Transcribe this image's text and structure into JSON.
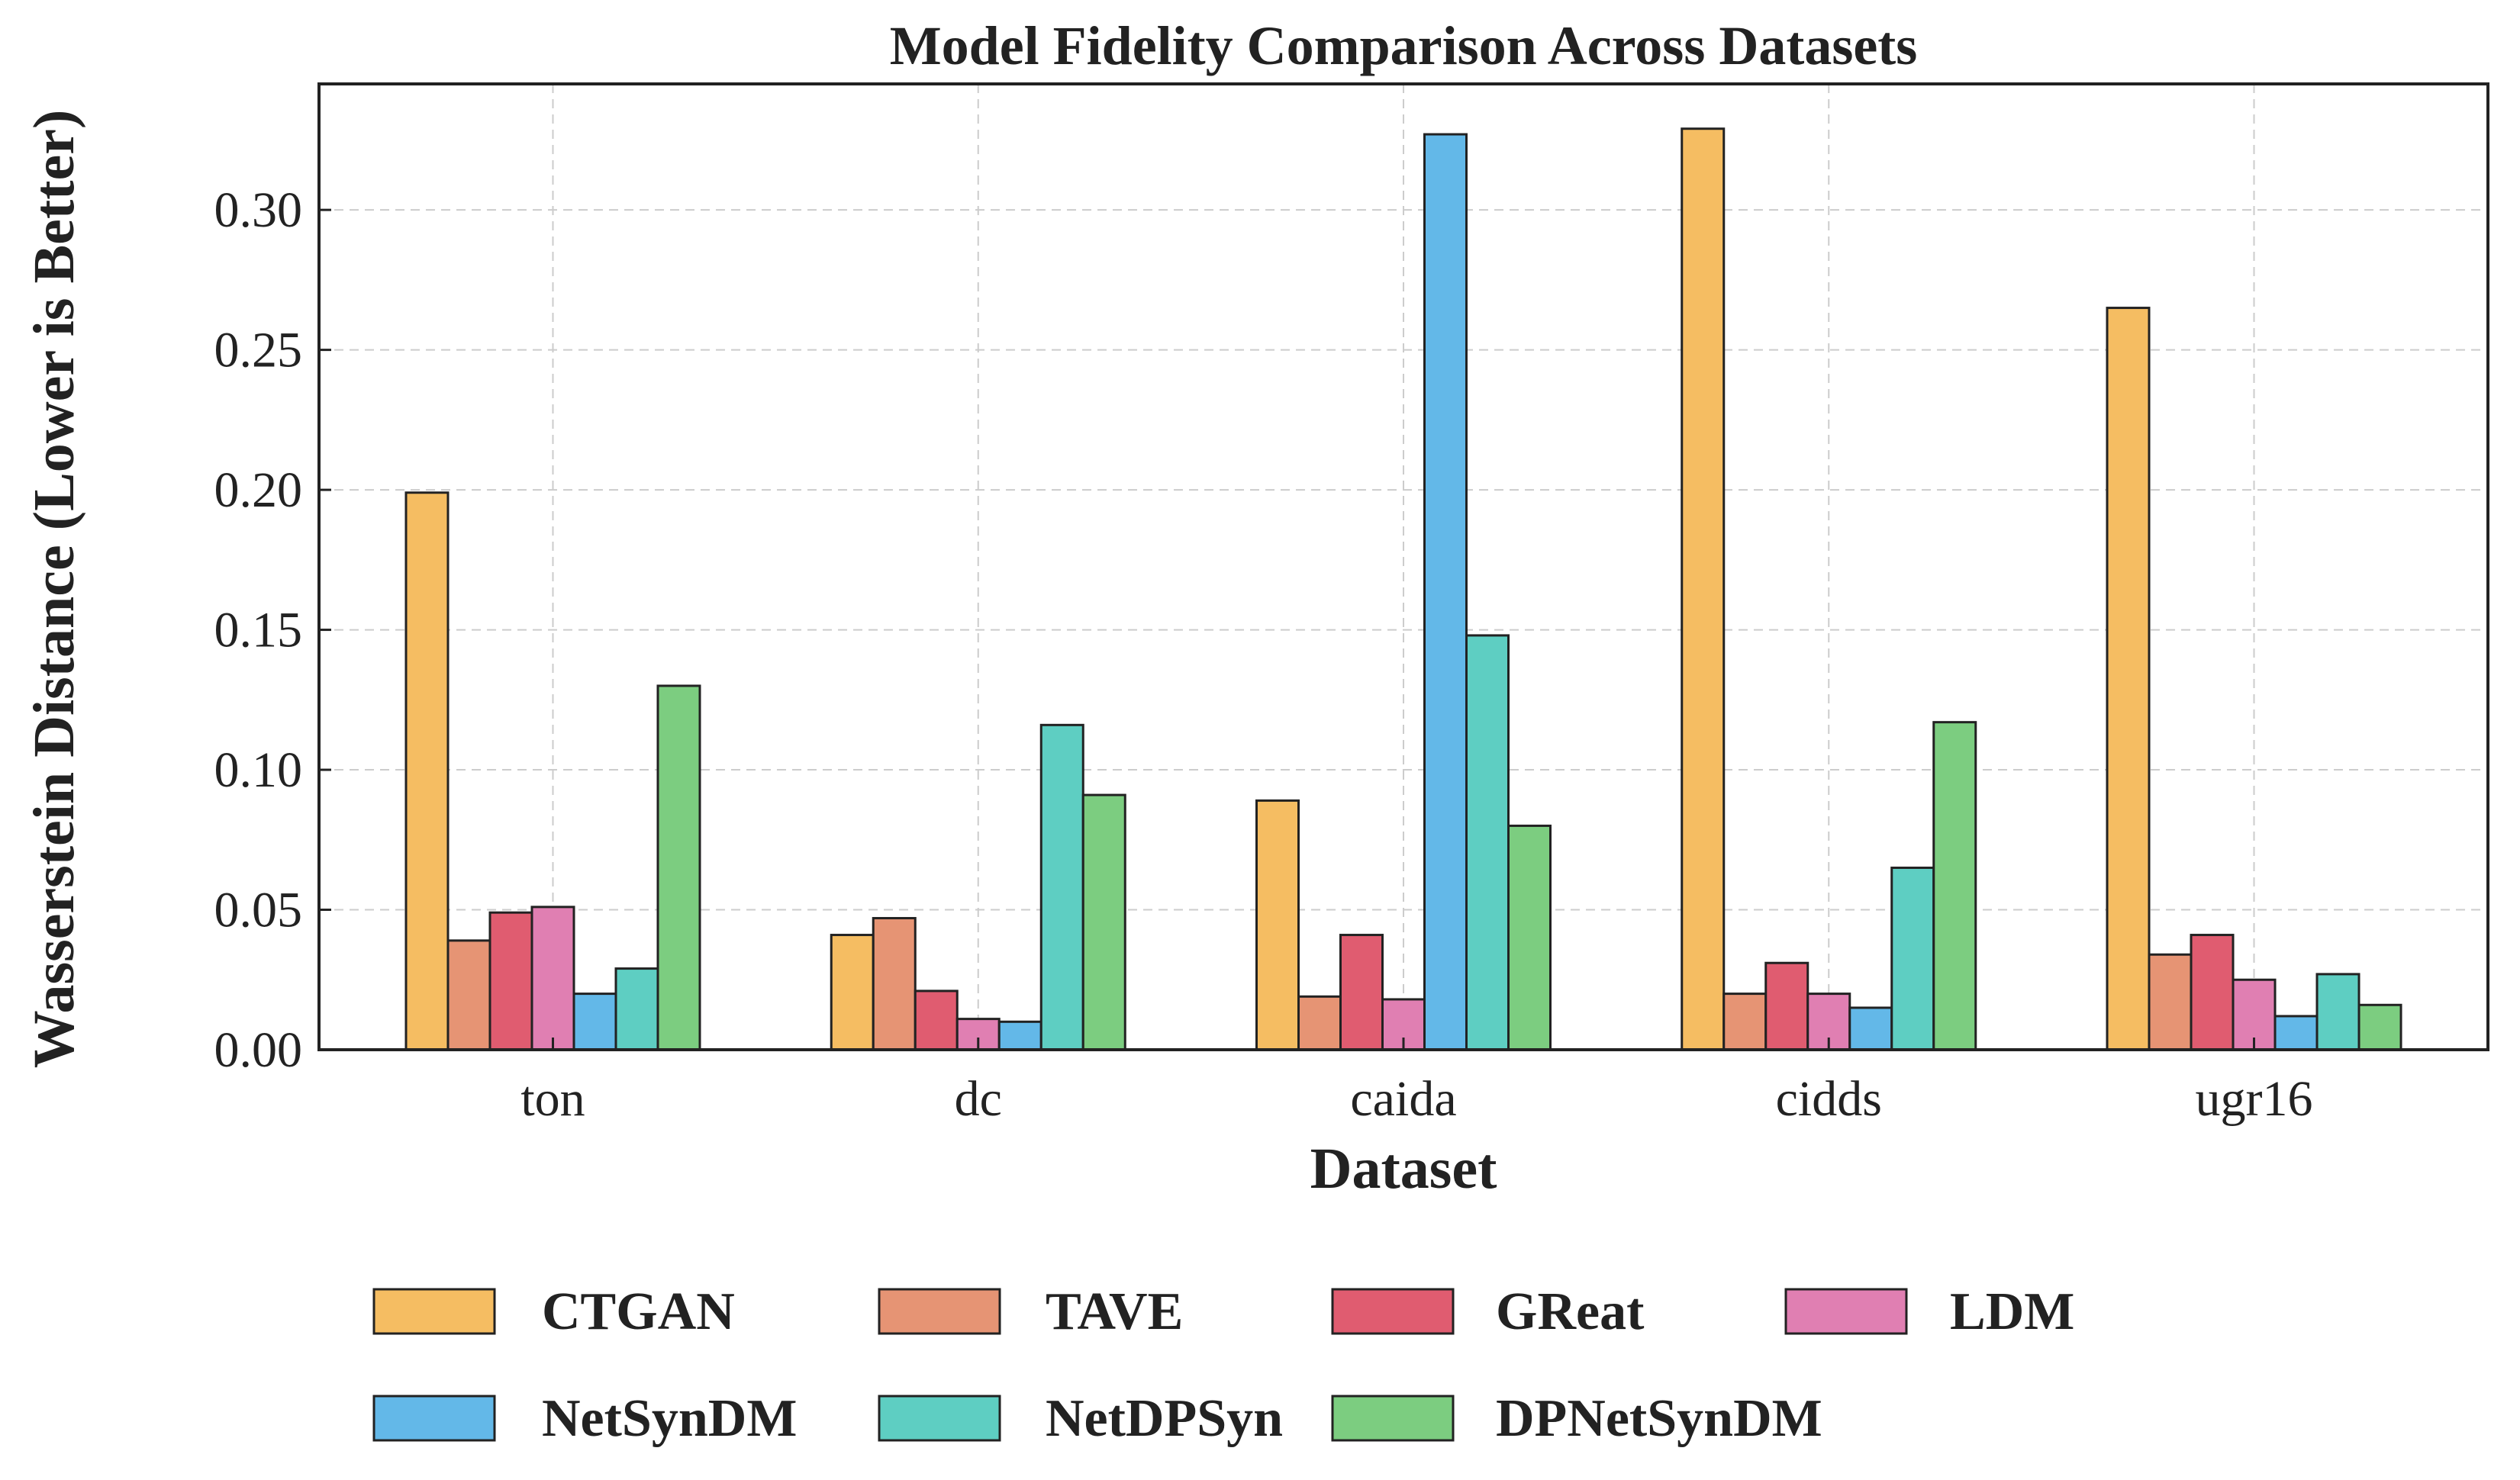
{
  "chart_data": {
    "type": "bar",
    "title": "Model Fidelity Comparison Across Datasets",
    "xlabel": "Dataset",
    "ylabel": "Wasserstein Distance (Lower is Better)",
    "categories": [
      "ton",
      "dc",
      "caida",
      "cidds",
      "ugr16"
    ],
    "ylim": [
      0,
      0.345
    ],
    "yticks": [
      0.0,
      0.05,
      0.1,
      0.15,
      0.2,
      0.25,
      0.3
    ],
    "ytick_labels": [
      "0.00",
      "0.05",
      "0.10",
      "0.15",
      "0.20",
      "0.25",
      "0.30"
    ],
    "grid": true,
    "legend_position": "bottom",
    "series": [
      {
        "name": "CTGAN",
        "color": "#F5BD62",
        "values": [
          0.199,
          0.041,
          0.089,
          0.329,
          0.265
        ]
      },
      {
        "name": "TAVE",
        "color": "#E69474",
        "values": [
          0.039,
          0.047,
          0.019,
          0.02,
          0.034
        ]
      },
      {
        "name": "GReat",
        "color": "#E05C70",
        "values": [
          0.049,
          0.021,
          0.041,
          0.031,
          0.041
        ]
      },
      {
        "name": "LDM",
        "color": "#E07FB2",
        "values": [
          0.051,
          0.011,
          0.018,
          0.02,
          0.025
        ]
      },
      {
        "name": "NetSynDM",
        "color": "#63B8E8",
        "values": [
          0.02,
          0.01,
          0.327,
          0.015,
          0.012
        ]
      },
      {
        "name": "NetDPSyn",
        "color": "#5ECEC2",
        "values": [
          0.029,
          0.116,
          0.148,
          0.065,
          0.027
        ]
      },
      {
        "name": "DPNetSynDM",
        "color": "#7CCD80",
        "values": [
          0.13,
          0.091,
          0.08,
          0.117,
          0.016
        ]
      }
    ]
  }
}
